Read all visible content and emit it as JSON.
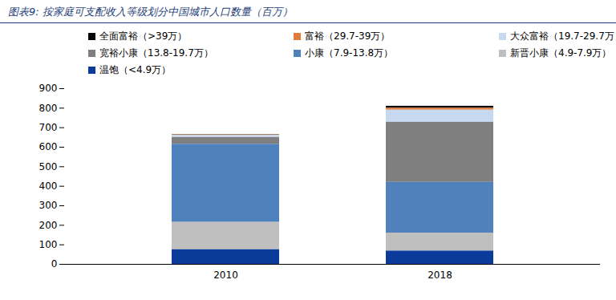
{
  "chart_data": {
    "type": "bar",
    "title": "图表9: 按家庭可支配收入等级划分中国城市人口数量（百万）",
    "categories": [
      "2010",
      "2018"
    ],
    "stacked": true,
    "legend": "top",
    "grid": false,
    "ylim": [
      0,
      900
    ],
    "yticks": [
      0,
      100,
      200,
      300,
      400,
      500,
      600,
      700,
      800,
      900
    ],
    "series": [
      {
        "name": "全面富裕（>39万）",
        "color": "#000000",
        "values": [
          2,
          10
        ]
      },
      {
        "name": "富裕（29.7-39万）",
        "color": "#e07b39",
        "values": [
          3,
          10
        ]
      },
      {
        "name": "大众富裕（19.7-29.7万）",
        "color": "#c6d9f1",
        "values": [
          10,
          62
        ]
      },
      {
        "name": "宽裕小康（13.8-19.7万）",
        "color": "#7f7f7f",
        "values": [
          35,
          308
        ]
      },
      {
        "name": "小康（7.9-13.8万）",
        "color": "#4f81bd",
        "values": [
          400,
          260
        ]
      },
      {
        "name": "新晋小康（4.9-7.9万）",
        "color": "#bfbfbf",
        "values": [
          140,
          92
        ]
      },
      {
        "name": "温饱（<4.9万）",
        "color": "#0a3a9a",
        "values": [
          75,
          68
        ]
      }
    ]
  }
}
